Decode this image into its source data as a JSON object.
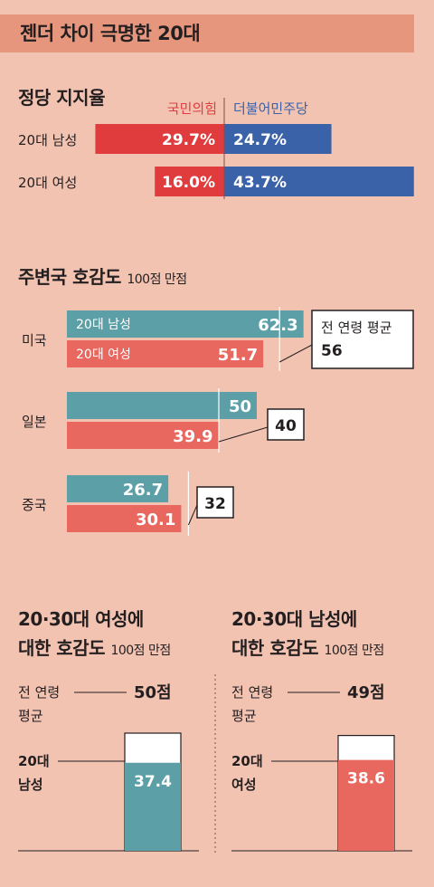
{
  "header": {
    "title": "젠더 차이 극명한 20대"
  },
  "support": {
    "title": "정당 지지율",
    "parties": [
      {
        "name": "국민의힘",
        "color": "#e03c3e"
      },
      {
        "name": "더불어민주당",
        "color": "#3a62a8"
      }
    ]
  },
  "favor": {
    "title": "주변국 호감도",
    "unit_note": "100점 만점",
    "avg_label_line1": "전 연령 평균"
  },
  "bottom_left": {
    "title_line1": "20·30대 여성에",
    "title_line2": "대한 호감도",
    "unit_note": "100점 만점",
    "avg_label_line1": "전 연령",
    "avg_label_line2": "평균",
    "avg_value_label": "50점",
    "group_line1": "20대",
    "group_line2": "남성",
    "value_label": "37.4"
  },
  "bottom_right": {
    "title_line1": "20·30대 남성에",
    "title_line2": "대한 호감도",
    "unit_note": "100점 만점",
    "avg_label_line1": "전 연령",
    "avg_label_line2": "평균",
    "avg_value_label": "49점",
    "group_line1": "20대",
    "group_line2": "여성",
    "value_label": "38.6"
  },
  "chart_data": [
    {
      "type": "bar",
      "title": "정당 지지율",
      "categories": [
        "20대 남성",
        "20대 여성"
      ],
      "series": [
        {
          "name": "국민의힘",
          "values": [
            29.7,
            16.0
          ],
          "labels": [
            "29.7%",
            "16.0%"
          ],
          "color": "#e03c3e"
        },
        {
          "name": "더불어민주당",
          "values": [
            24.7,
            43.7
          ],
          "labels": [
            "24.7%",
            "43.7%"
          ],
          "color": "#3a62a8"
        }
      ]
    },
    {
      "type": "bar",
      "title": "주변국 호감도",
      "categories": [
        "미국",
        "일본",
        "중국"
      ],
      "series": [
        {
          "name": "20대 남성",
          "values": [
            62.3,
            50,
            26.7
          ],
          "labels": [
            "62.3",
            "50",
            "26.7"
          ],
          "color": "#5c9fa6"
        },
        {
          "name": "20대 여성",
          "values": [
            51.7,
            39.9,
            30.1
          ],
          "labels": [
            "51.7",
            "39.9",
            "30.1"
          ],
          "color": "#e8675f"
        }
      ],
      "reference": {
        "values": [
          56,
          40,
          32
        ],
        "labels": [
          "56",
          "40",
          "32"
        ]
      }
    },
    {
      "type": "bar",
      "title": "20·30대 여성에 대한 호감도",
      "categories": [
        "20대 남성"
      ],
      "values": [
        37.4
      ],
      "reference": 50,
      "color": "#5c9fa6",
      "ylim": [
        0,
        100
      ]
    },
    {
      "type": "bar",
      "title": "20·30대 남성에 대한 호감도",
      "categories": [
        "20대 여성"
      ],
      "values": [
        38.6
      ],
      "reference": 49,
      "color": "#e8675f",
      "ylim": [
        0,
        100
      ]
    }
  ]
}
